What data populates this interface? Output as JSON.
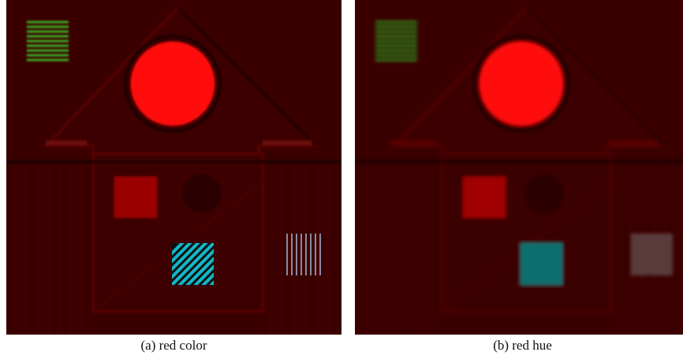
{
  "figure": {
    "panels": [
      {
        "id": "a",
        "caption": "(a) red color",
        "variant": "color"
      },
      {
        "id": "b",
        "caption": "(b) red hue",
        "variant": "hue"
      }
    ]
  },
  "colors": {
    "background": "#3a0000",
    "house_line": "#5a0606",
    "dark_line": "#1a0000",
    "sun": "#ff0a0a",
    "green_stripes": "#3ccf2a",
    "red_square": "#9a0606",
    "dark_diamond": "#2a0000",
    "cyan": "#13b7c8",
    "teal_square": "#0c6e6e",
    "gray_lines": "#8a8aa0",
    "gray_square": "#5a3a3a"
  }
}
